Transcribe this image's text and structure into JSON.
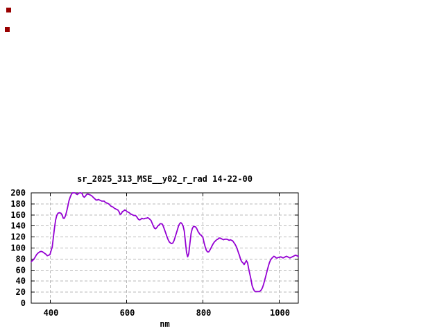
{
  "window": {
    "background": "#ffffff"
  },
  "markers": [
    {
      "label": "red-square-marker-top",
      "x": 9,
      "y": 11,
      "size": 7,
      "color": "#990000"
    },
    {
      "label": "red-square-marker-bottom",
      "x": 7,
      "y": 39,
      "size": 7,
      "color": "#990000"
    }
  ],
  "chart_data": {
    "type": "line",
    "title": "sr_2025_313_MSE__y02_r_rad 14-22-00",
    "xlabel": "nm",
    "ylabel": "",
    "xlim": [
      350,
      1050
    ],
    "ylim": [
      0,
      200
    ],
    "xticks": [
      400,
      600,
      800,
      1000
    ],
    "yticks": [
      0,
      20,
      40,
      60,
      80,
      100,
      120,
      140,
      160,
      180,
      200
    ],
    "grid": true,
    "legend": "none",
    "colors": {
      "line": "#9400d3",
      "grid": "#b8b8b8",
      "axis": "#000000",
      "text": "#000000"
    },
    "series": [
      {
        "name": "sr_2025_313_MSE__y02_r_rad",
        "points": [
          [
            350,
            75
          ],
          [
            353,
            77
          ],
          [
            356,
            79
          ],
          [
            360,
            83
          ],
          [
            364,
            88
          ],
          [
            368,
            91
          ],
          [
            372,
            93
          ],
          [
            376,
            94
          ],
          [
            380,
            93
          ],
          [
            384,
            91
          ],
          [
            388,
            89
          ],
          [
            392,
            86
          ],
          [
            396,
            87
          ],
          [
            399,
            88
          ],
          [
            402,
            95
          ],
          [
            405,
            102
          ],
          [
            408,
            119
          ],
          [
            411,
            136
          ],
          [
            414,
            151
          ],
          [
            417,
            159
          ],
          [
            420,
            163
          ],
          [
            424,
            164
          ],
          [
            428,
            163
          ],
          [
            431,
            160
          ],
          [
            434,
            154
          ],
          [
            437,
            154
          ],
          [
            440,
            159
          ],
          [
            443,
            167
          ],
          [
            446,
            176
          ],
          [
            449,
            186
          ],
          [
            452,
            192
          ],
          [
            455,
            197
          ],
          [
            458,
            200
          ],
          [
            462,
            200
          ],
          [
            465,
            200
          ],
          [
            468,
            198
          ],
          [
            471,
            197
          ],
          [
            474,
            199
          ],
          [
            477,
            200
          ],
          [
            480,
            200
          ],
          [
            483,
            199
          ],
          [
            486,
            194
          ],
          [
            489,
            192
          ],
          [
            492,
            194
          ],
          [
            495,
            197
          ],
          [
            498,
            198
          ],
          [
            502,
            197
          ],
          [
            505,
            196
          ],
          [
            508,
            195
          ],
          [
            511,
            193
          ],
          [
            514,
            191
          ],
          [
            517,
            189
          ],
          [
            520,
            187
          ],
          [
            523,
            187
          ],
          [
            526,
            188
          ],
          [
            529,
            187
          ],
          [
            532,
            186
          ],
          [
            535,
            185
          ],
          [
            538,
            185
          ],
          [
            541,
            185
          ],
          [
            544,
            183
          ],
          [
            547,
            182
          ],
          [
            550,
            181
          ],
          [
            553,
            180
          ],
          [
            556,
            178
          ],
          [
            559,
            176
          ],
          [
            562,
            175
          ],
          [
            565,
            174
          ],
          [
            568,
            172
          ],
          [
            571,
            171
          ],
          [
            574,
            170
          ],
          [
            577,
            169
          ],
          [
            580,
            166
          ],
          [
            583,
            161
          ],
          [
            586,
            162
          ],
          [
            589,
            166
          ],
          [
            592,
            167
          ],
          [
            595,
            169
          ],
          [
            598,
            168
          ],
          [
            601,
            166
          ],
          [
            604,
            165
          ],
          [
            607,
            164
          ],
          [
            610,
            162
          ],
          [
            613,
            161
          ],
          [
            616,
            160
          ],
          [
            619,
            159
          ],
          [
            622,
            159
          ],
          [
            625,
            158
          ],
          [
            628,
            155
          ],
          [
            631,
            152
          ],
          [
            634,
            151
          ],
          [
            637,
            152
          ],
          [
            640,
            154
          ],
          [
            643,
            153
          ],
          [
            646,
            153
          ],
          [
            649,
            154
          ],
          [
            652,
            154
          ],
          [
            655,
            155
          ],
          [
            658,
            154
          ],
          [
            661,
            152
          ],
          [
            664,
            150
          ],
          [
            667,
            145
          ],
          [
            670,
            140
          ],
          [
            673,
            136
          ],
          [
            676,
            135
          ],
          [
            679,
            137
          ],
          [
            682,
            140
          ],
          [
            685,
            142
          ],
          [
            688,
            144
          ],
          [
            691,
            144
          ],
          [
            694,
            143
          ],
          [
            697,
            138
          ],
          [
            700,
            132
          ],
          [
            703,
            126
          ],
          [
            706,
            120
          ],
          [
            709,
            115
          ],
          [
            712,
            111
          ],
          [
            715,
            109
          ],
          [
            718,
            108
          ],
          [
            721,
            109
          ],
          [
            724,
            113
          ],
          [
            727,
            119
          ],
          [
            730,
            126
          ],
          [
            733,
            133
          ],
          [
            736,
            140
          ],
          [
            739,
            144
          ],
          [
            742,
            146
          ],
          [
            745,
            144
          ],
          [
            748,
            140
          ],
          [
            751,
            131
          ],
          [
            754,
            112
          ],
          [
            757,
            92
          ],
          [
            760,
            84
          ],
          [
            763,
            90
          ],
          [
            766,
            109
          ],
          [
            769,
            126
          ],
          [
            772,
            135
          ],
          [
            775,
            139
          ],
          [
            778,
            139
          ],
          [
            781,
            138
          ],
          [
            784,
            135
          ],
          [
            787,
            130
          ],
          [
            790,
            127
          ],
          [
            793,
            124
          ],
          [
            796,
            123
          ],
          [
            800,
            119
          ],
          [
            803,
            110
          ],
          [
            806,
            102
          ],
          [
            809,
            96
          ],
          [
            812,
            93
          ],
          [
            815,
            93
          ],
          [
            818,
            96
          ],
          [
            821,
            100
          ],
          [
            824,
            104
          ],
          [
            827,
            108
          ],
          [
            830,
            111
          ],
          [
            833,
            113
          ],
          [
            836,
            115
          ],
          [
            839,
            116
          ],
          [
            842,
            118
          ],
          [
            845,
            118
          ],
          [
            848,
            117
          ],
          [
            851,
            116
          ],
          [
            854,
            115
          ],
          [
            857,
            116
          ],
          [
            860,
            116
          ],
          [
            863,
            116
          ],
          [
            866,
            115
          ],
          [
            869,
            114
          ],
          [
            872,
            115
          ],
          [
            875,
            114
          ],
          [
            878,
            113
          ],
          [
            881,
            110
          ],
          [
            884,
            107
          ],
          [
            887,
            103
          ],
          [
            890,
            98
          ],
          [
            893,
            92
          ],
          [
            896,
            86
          ],
          [
            899,
            79
          ],
          [
            902,
            75
          ],
          [
            905,
            73
          ],
          [
            908,
            70
          ],
          [
            911,
            74
          ],
          [
            914,
            77
          ],
          [
            917,
            73
          ],
          [
            920,
            62
          ],
          [
            923,
            53
          ],
          [
            926,
            43
          ],
          [
            929,
            32
          ],
          [
            932,
            26
          ],
          [
            935,
            22
          ],
          [
            938,
            21
          ],
          [
            941,
            21
          ],
          [
            944,
            21
          ],
          [
            947,
            21
          ],
          [
            950,
            22
          ],
          [
            953,
            24
          ],
          [
            956,
            28
          ],
          [
            959,
            34
          ],
          [
            962,
            42
          ],
          [
            965,
            50
          ],
          [
            968,
            58
          ],
          [
            971,
            66
          ],
          [
            974,
            73
          ],
          [
            977,
            78
          ],
          [
            980,
            81
          ],
          [
            983,
            83
          ],
          [
            986,
            85
          ],
          [
            989,
            84
          ],
          [
            992,
            82
          ],
          [
            995,
            82
          ],
          [
            998,
            83
          ],
          [
            1001,
            83
          ],
          [
            1004,
            84
          ],
          [
            1007,
            83
          ],
          [
            1010,
            82
          ],
          [
            1013,
            83
          ],
          [
            1016,
            84
          ],
          [
            1019,
            85
          ],
          [
            1022,
            84
          ],
          [
            1025,
            83
          ],
          [
            1028,
            82
          ],
          [
            1031,
            83
          ],
          [
            1034,
            84
          ],
          [
            1037,
            85
          ],
          [
            1040,
            86
          ],
          [
            1043,
            87
          ],
          [
            1046,
            86
          ],
          [
            1050,
            85
          ]
        ]
      }
    ]
  }
}
